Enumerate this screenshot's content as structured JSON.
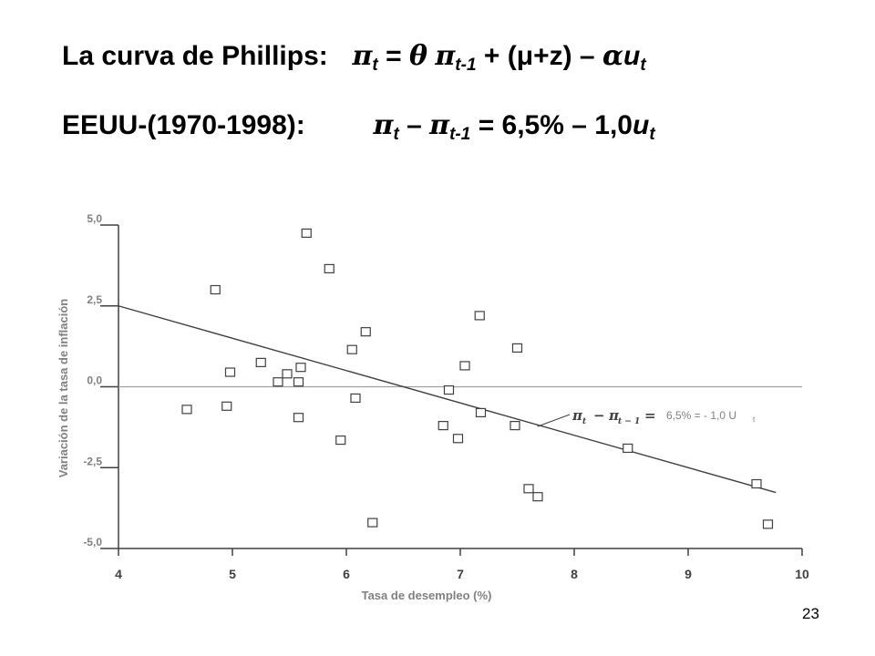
{
  "titles": {
    "line1": {
      "lead": "La curva de  Phillips:",
      "pi": "π",
      "t": "t",
      "eq": "=",
      "theta": "θ",
      "tm1": "t-1",
      "rest": "+ (μ+z) –",
      "alpha": "α",
      "u": "u",
      "ut": "t"
    },
    "line2": {
      "lead": "EEUU-(1970-1998):",
      "pi": "π",
      "t": "t",
      "minus": "–",
      "tm1": "t-1",
      "rest": "= 6,5%  – 1,0",
      "u": "u",
      "ut": "t"
    }
  },
  "page_number": "23",
  "colors": {
    "line": "#404040",
    "axis": "#404040",
    "zero_line": "#a0a0a0",
    "marker": "#404040",
    "label_gray": "#808080"
  },
  "chart_data": {
    "type": "scatter",
    "xlabel": "Tasa de desempleo (%)",
    "ylabel": "Variación de la tasa de inflación",
    "xlim": [
      4,
      10
    ],
    "ylim": [
      -5,
      5
    ],
    "x_ticks": [
      "4",
      "5",
      "6",
      "7",
      "8",
      "9",
      "10"
    ],
    "y_ticks": [
      "5,0",
      "2,5",
      "0,0",
      "-2,5",
      "-5,0"
    ],
    "reference_line_y": 0,
    "marker": "open-square",
    "points": [
      {
        "x": 4.6,
        "y": -0.7
      },
      {
        "x": 4.85,
        "y": 3.0
      },
      {
        "x": 4.95,
        "y": -0.6
      },
      {
        "x": 4.98,
        "y": 0.45
      },
      {
        "x": 5.25,
        "y": 0.75
      },
      {
        "x": 5.4,
        "y": 0.15
      },
      {
        "x": 5.48,
        "y": 0.4
      },
      {
        "x": 5.58,
        "y": 0.15
      },
      {
        "x": 5.58,
        "y": -0.95
      },
      {
        "x": 5.6,
        "y": 0.6
      },
      {
        "x": 5.65,
        "y": 4.75
      },
      {
        "x": 5.85,
        "y": 3.65
      },
      {
        "x": 5.95,
        "y": -1.65
      },
      {
        "x": 6.05,
        "y": 1.15
      },
      {
        "x": 6.08,
        "y": -0.35
      },
      {
        "x": 6.17,
        "y": 1.7
      },
      {
        "x": 6.23,
        "y": -4.2
      },
      {
        "x": 6.85,
        "y": -1.2
      },
      {
        "x": 6.9,
        "y": -0.1
      },
      {
        "x": 6.98,
        "y": -1.6
      },
      {
        "x": 7.04,
        "y": 0.65
      },
      {
        "x": 7.17,
        "y": 2.2
      },
      {
        "x": 7.18,
        "y": -0.8
      },
      {
        "x": 7.48,
        "y": -1.2
      },
      {
        "x": 7.5,
        "y": 1.2
      },
      {
        "x": 7.6,
        "y": -3.15
      },
      {
        "x": 7.68,
        "y": -3.4
      },
      {
        "x": 8.47,
        "y": -1.9
      },
      {
        "x": 9.6,
        "y": -3.0
      },
      {
        "x": 9.7,
        "y": -4.25
      }
    ],
    "regression": {
      "intercept": 6.5,
      "slope": -1.0,
      "x_range": [
        4,
        9.77
      ]
    },
    "annotation": {
      "pi_left": "π",
      "t_left": "t",
      "minus": "−",
      "pi_right": "π",
      "t_right": "t − 1",
      "equals": "=",
      "rhs": "6,5% = - 1,0 U",
      "rhs_sub": "t",
      "pointer_x": 7.7
    }
  }
}
